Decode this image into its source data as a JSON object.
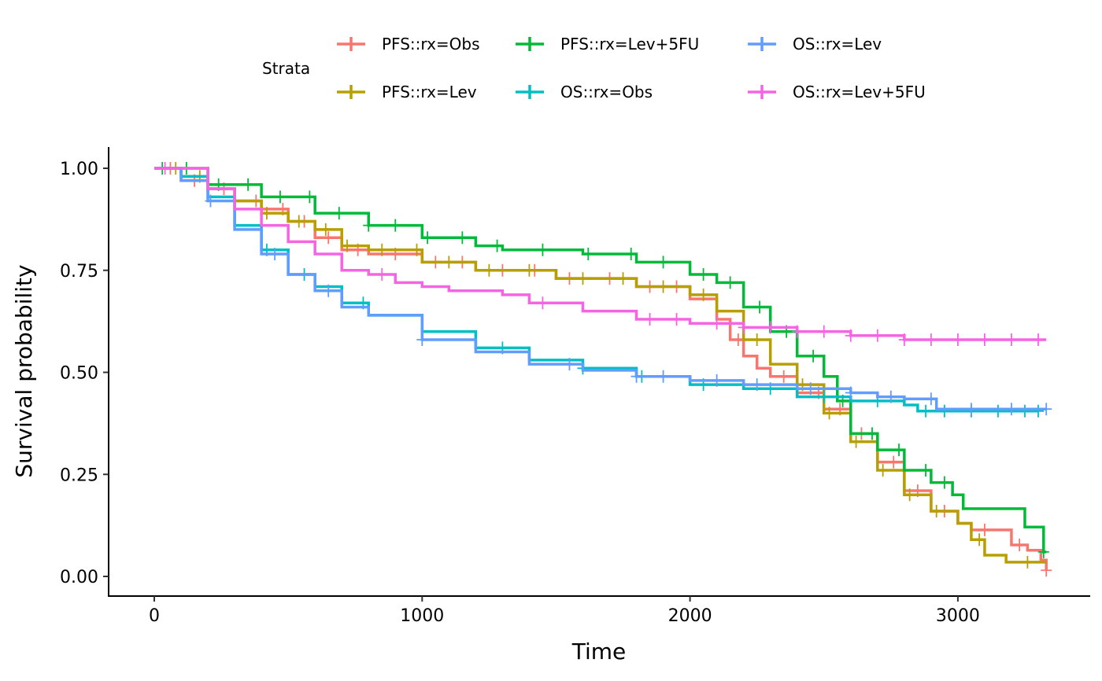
{
  "chart_data": {
    "type": "line",
    "title": "",
    "xlabel": "Time",
    "ylabel": "Survival probability",
    "xlim": [
      -170,
      3500
    ],
    "ylim": [
      -0.05,
      1.05
    ],
    "xticks": [
      0,
      1000,
      2000,
      3000
    ],
    "xtick_labels": [
      "0",
      "1000",
      "2000",
      "3000"
    ],
    "yticks": [
      0,
      0.25,
      0.5,
      0.75,
      1.0
    ],
    "ytick_labels": [
      "0.00",
      "0.25",
      "0.50",
      "0.75",
      "1.00"
    ],
    "grid": false,
    "legend": {
      "title": "Strata",
      "placement": "top"
    },
    "series": [
      {
        "name": "PFS::rx=Obs",
        "color": "#F8766D",
        "x": [
          0,
          100,
          200,
          300,
          400,
          500,
          600,
          700,
          800,
          1000,
          1200,
          1500,
          1800,
          2000,
          2100,
          2150,
          2200,
          2250,
          2300,
          2400,
          2500,
          2600,
          2700,
          2800,
          2900,
          3000,
          3050,
          3200,
          3260,
          3310,
          3330
        ],
        "y": [
          1,
          0.97,
          0.95,
          0.92,
          0.9,
          0.87,
          0.83,
          0.8,
          0.79,
          0.77,
          0.75,
          0.73,
          0.71,
          0.68,
          0.63,
          0.58,
          0.54,
          0.51,
          0.49,
          0.45,
          0.41,
          0.35,
          0.28,
          0.21,
          0.16,
          0.13,
          0.114,
          0.077,
          0.064,
          0.04,
          0.015
        ],
        "censor": [
          60,
          150,
          260,
          380,
          480,
          560,
          650,
          760,
          900,
          1050,
          1150,
          1300,
          1420,
          1550,
          1700,
          1850,
          1950,
          2180,
          2350,
          2480,
          2560,
          2640,
          2760,
          2850,
          2950,
          3100,
          3230,
          3330
        ]
      },
      {
        "name": "PFS::rx=Lev",
        "color": "#B79F00",
        "x": [
          0,
          100,
          200,
          300,
          400,
          500,
          600,
          700,
          800,
          1000,
          1200,
          1500,
          1800,
          2000,
          2100,
          2200,
          2300,
          2400,
          2500,
          2600,
          2700,
          2800,
          2900,
          3000,
          3050,
          3100,
          3180,
          3330
        ],
        "y": [
          1,
          0.98,
          0.95,
          0.92,
          0.89,
          0.87,
          0.85,
          0.81,
          0.8,
          0.77,
          0.75,
          0.73,
          0.71,
          0.69,
          0.65,
          0.58,
          0.52,
          0.47,
          0.4,
          0.33,
          0.26,
          0.2,
          0.16,
          0.13,
          0.09,
          0.052,
          0.035,
          0.035
        ],
        "censor": [
          80,
          170,
          300,
          420,
          540,
          640,
          720,
          850,
          980,
          1100,
          1250,
          1400,
          1600,
          1750,
          1900,
          2050,
          2250,
          2420,
          2520,
          2620,
          2720,
          2820,
          2920,
          3080,
          3260
        ]
      },
      {
        "name": "PFS::rx=Lev+5FU",
        "color": "#00BA38",
        "x": [
          0,
          200,
          400,
          600,
          800,
          1000,
          1200,
          1300,
          1600,
          1800,
          2000,
          2100,
          2200,
          2300,
          2400,
          2500,
          2550,
          2600,
          2700,
          2800,
          2900,
          2980,
          3020,
          3250,
          3320,
          3330
        ],
        "y": [
          1,
          0.96,
          0.93,
          0.89,
          0.86,
          0.83,
          0.81,
          0.8,
          0.79,
          0.77,
          0.74,
          0.72,
          0.66,
          0.6,
          0.54,
          0.49,
          0.43,
          0.35,
          0.31,
          0.26,
          0.23,
          0.2,
          0.166,
          0.121,
          0.06,
          0.06
        ],
        "censor": [
          30,
          120,
          240,
          350,
          470,
          580,
          690,
          800,
          900,
          1020,
          1150,
          1280,
          1450,
          1620,
          1780,
          1900,
          2050,
          2150,
          2260,
          2360,
          2460,
          2570,
          2680,
          2780,
          2880,
          2950,
          3320
        ]
      },
      {
        "name": "OS::rx=Obs",
        "color": "#00BFC4",
        "x": [
          0,
          100,
          200,
          300,
          400,
          500,
          600,
          700,
          800,
          1000,
          1200,
          1400,
          1600,
          1800,
          2000,
          2200,
          2400,
          2600,
          2800,
          2850,
          3300
        ],
        "y": [
          1,
          0.98,
          0.93,
          0.86,
          0.8,
          0.74,
          0.71,
          0.67,
          0.64,
          0.6,
          0.56,
          0.53,
          0.51,
          0.49,
          0.47,
          0.46,
          0.44,
          0.43,
          0.42,
          0.405,
          0.405
        ],
        "censor": [
          420,
          560,
          780,
          1300,
          1600,
          1820,
          2050,
          2300,
          2500,
          2700,
          2880,
          2950,
          3050,
          3150,
          3250,
          3300
        ]
      },
      {
        "name": "OS::rx=Lev",
        "color": "#619CFF",
        "x": [
          0,
          100,
          200,
          300,
          400,
          500,
          600,
          700,
          800,
          1000,
          1200,
          1400,
          1600,
          1800,
          2000,
          2200,
          2400,
          2600,
          2700,
          2800,
          2920,
          3330
        ],
        "y": [
          1,
          0.97,
          0.92,
          0.85,
          0.79,
          0.74,
          0.7,
          0.66,
          0.64,
          0.58,
          0.55,
          0.52,
          0.505,
          0.49,
          0.48,
          0.47,
          0.46,
          0.45,
          0.44,
          0.435,
          0.41,
          0.41
        ],
        "censor": [
          210,
          450,
          650,
          1000,
          1550,
          1800,
          1900,
          2100,
          2250,
          2450,
          2600,
          2750,
          2900,
          3050,
          3200,
          3330
        ]
      },
      {
        "name": "OS::rx=Lev+5FU",
        "color": "#F564E3",
        "x": [
          0,
          200,
          300,
          400,
          500,
          600,
          700,
          800,
          900,
          1000,
          1100,
          1300,
          1400,
          1600,
          1800,
          2000,
          2200,
          2400,
          2600,
          2800,
          3330
        ],
        "y": [
          1,
          0.95,
          0.9,
          0.86,
          0.82,
          0.79,
          0.75,
          0.74,
          0.72,
          0.71,
          0.7,
          0.69,
          0.67,
          0.65,
          0.63,
          0.62,
          0.61,
          0.6,
          0.59,
          0.58,
          0.58
        ],
        "censor": [
          40,
          850,
          1450,
          1850,
          1950,
          2100,
          2200,
          2300,
          2400,
          2500,
          2600,
          2700,
          2800,
          2900,
          3000,
          3100,
          3200,
          3300
        ]
      }
    ]
  }
}
